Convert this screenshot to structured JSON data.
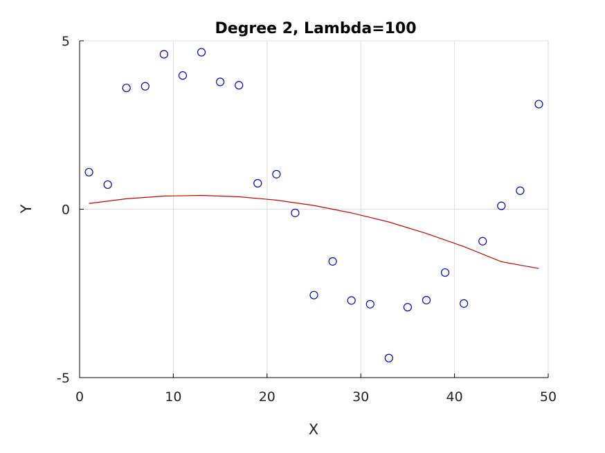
{
  "chart_data": {
    "type": "scatter",
    "title": "Degree 2, Lambda=100",
    "xlabel": "X",
    "ylabel": "Y",
    "xlim": [
      0,
      50
    ],
    "ylim": [
      -5,
      5
    ],
    "xticks": [
      "0",
      "10",
      "20",
      "30",
      "40",
      "50"
    ],
    "yticks": [
      "-5",
      "0",
      "5"
    ],
    "grid": true,
    "series": [
      {
        "marker": "open-circle",
        "color": "#0000cc",
        "x": [
          1,
          3,
          5,
          7,
          9,
          11,
          13,
          15,
          17,
          19,
          21,
          23,
          25,
          27,
          29,
          31,
          33,
          35,
          37,
          39,
          41,
          43,
          45,
          47,
          49
        ],
        "y": [
          1.1,
          0.73,
          3.6,
          3.65,
          4.6,
          3.97,
          4.66,
          3.78,
          3.68,
          0.77,
          1.04,
          -0.11,
          -2.55,
          -1.55,
          -2.71,
          -2.82,
          -4.42,
          -2.91,
          -2.7,
          -1.88,
          -2.8,
          -0.95,
          0.1,
          0.55,
          3.12
        ]
      },
      {
        "style": "line",
        "color": "#cc0000",
        "x": [
          1,
          5,
          9,
          13,
          17,
          21,
          25,
          29,
          33,
          37,
          41,
          45,
          49
        ],
        "y": [
          0.17,
          0.31,
          0.39,
          0.41,
          0.37,
          0.27,
          0.11,
          -0.11,
          -0.38,
          -0.72,
          -1.11,
          -1.56,
          -1.76
        ]
      }
    ]
  }
}
